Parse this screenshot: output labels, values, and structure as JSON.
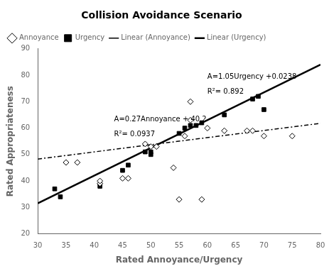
{
  "chart_data": {
    "type": "scatter",
    "title": "Collision Avoidance Scenario",
    "x_label": "Rated Annoyance/Urgency",
    "y_label": "Rated Appropriateness",
    "xlim": [
      30,
      80
    ],
    "ylim": [
      20,
      90
    ],
    "xticks": [
      30,
      35,
      40,
      45,
      50,
      55,
      60,
      65,
      70,
      75,
      80
    ],
    "yticks": [
      20,
      30,
      40,
      50,
      60,
      70,
      80,
      90
    ],
    "grid": false,
    "legend": "upper left",
    "series": [
      {
        "name": "Annoyance",
        "type": "scatter",
        "marker": "diamond-open",
        "color": "#000000",
        "x": [
          35,
          37,
          41,
          41,
          45,
          46,
          49,
          50,
          51,
          54,
          55,
          56,
          57,
          57,
          59,
          60,
          63,
          67,
          68,
          70,
          75
        ],
        "values": [
          47,
          47,
          39,
          40,
          41,
          41,
          54,
          53,
          53,
          45,
          33,
          57,
          70,
          63,
          33,
          60,
          59,
          59,
          59,
          57,
          57
        ]
      },
      {
        "name": "Urgency",
        "type": "scatter",
        "marker": "square",
        "color": "#000000",
        "x": [
          33,
          34,
          41,
          45,
          46,
          49,
          50,
          50,
          55,
          56,
          57,
          58,
          59,
          63,
          68,
          69,
          70
        ],
        "values": [
          37,
          34,
          38,
          44,
          46,
          51,
          50,
          51,
          58,
          60,
          61,
          61,
          62,
          65,
          71,
          72,
          67
        ]
      },
      {
        "name": "Linear (Annoyance)",
        "type": "line",
        "line_style": "dashdot",
        "color": "#000000",
        "x": [
          30,
          80
        ],
        "values": [
          48.3,
          61.8
        ]
      },
      {
        "name": "Linear (Urgency)",
        "type": "line",
        "line_style": "solid",
        "color": "#000000",
        "x": [
          30,
          80
        ],
        "values": [
          31.5238,
          84.0238
        ]
      }
    ],
    "annotations": [
      "A=0.27Annoyance + 40.2",
      "R²= 0.0937",
      "A=1.05Urgency +0.0238",
      "R²= 0.892"
    ]
  }
}
